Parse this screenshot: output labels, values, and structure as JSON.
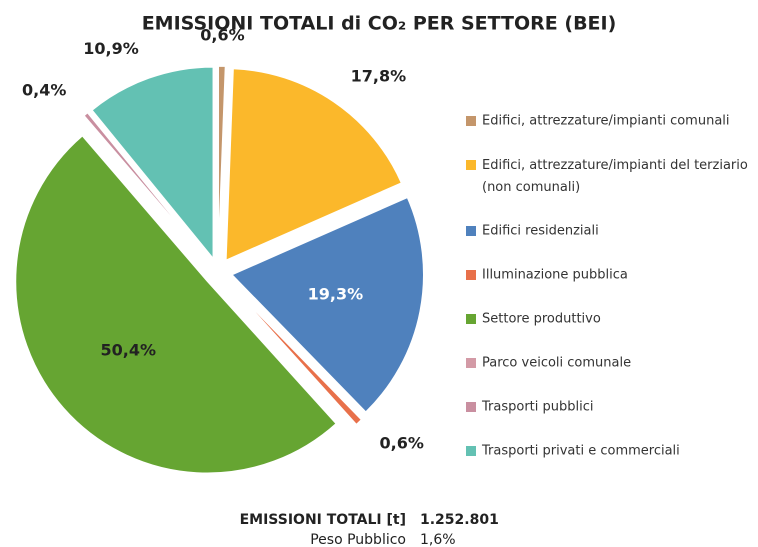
{
  "chart_data": {
    "type": "pie",
    "title": "EMISSIONI TOTALI di CO₂ PER SETTORE (BEI)",
    "categories": [
      "Edifici, attrezzature/impianti comunali",
      "Edifici, attrezzature/impianti del terziario (non comunali)",
      "Edifici residenziali",
      "Illuminazione pubblica",
      "Settore produttivo",
      "Parco veicoli comunale",
      "Trasporti pubblici",
      "Trasporti privati e commerciali"
    ],
    "values": [
      0.6,
      17.8,
      19.3,
      0.6,
      50.4,
      0,
      0.4,
      10.9
    ],
    "value_labels": [
      "0,6%",
      "17,8%",
      "19,3%",
      "0,6%",
      "50,4%",
      null,
      "0,4%",
      "10,9%"
    ],
    "colors": [
      "#c4966b",
      "#fbb82b",
      "#4f81bd",
      "#e8704a",
      "#66a532",
      "#d39aa6",
      "#c98fa0",
      "#63c1b3"
    ],
    "legend": "right",
    "footer": [
      {
        "label": "EMISSIONI TOTALI [t]",
        "value": "1.252.801"
      },
      {
        "label": "Peso Pubblico",
        "value": "1,6%"
      }
    ]
  }
}
